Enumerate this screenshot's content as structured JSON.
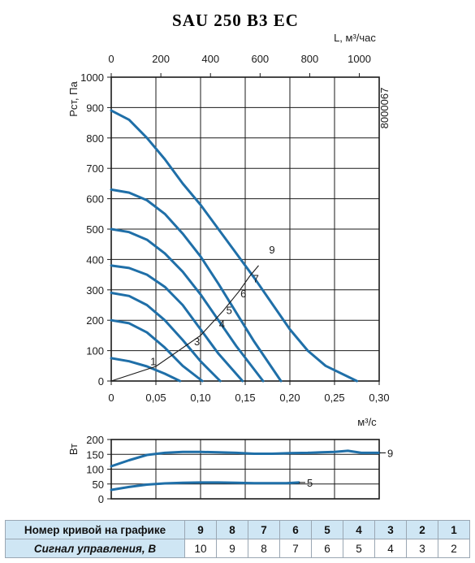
{
  "title": "SAU 250 B3 EC",
  "code": "8000067",
  "chart_data": [
    {
      "type": "line",
      "x_top_label": "L, м³/час",
      "x_top_ticks": [
        "0",
        "200",
        "400",
        "600",
        "800",
        "1000"
      ],
      "x_bottom_label": "м³/с",
      "x_bottom_ticks": [
        "0",
        "0,05",
        "0,10",
        "0,15",
        "0,20",
        "0,25",
        "0,30"
      ],
      "ylabel": "Pст, Па",
      "y_ticks": [
        "0",
        "100",
        "200",
        "300",
        "400",
        "500",
        "600",
        "700",
        "800",
        "900",
        "1000"
      ],
      "xlim": [
        0,
        0.3
      ],
      "ylim": [
        0,
        1000
      ],
      "grid": true,
      "series": [
        {
          "name": "1",
          "points": [
            [
              0,
              75
            ],
            [
              0.02,
              65
            ],
            [
              0.04,
              48
            ],
            [
              0.06,
              24
            ],
            [
              0.077,
              0
            ]
          ]
        },
        {
          "name": "",
          "points": [
            [
              0,
              200
            ],
            [
              0.02,
              190
            ],
            [
              0.04,
              160
            ],
            [
              0.06,
              110
            ],
            [
              0.08,
              50
            ],
            [
              0.102,
              0
            ]
          ]
        },
        {
          "name": "",
          "points": [
            [
              0,
              290
            ],
            [
              0.02,
              280
            ],
            [
              0.04,
              250
            ],
            [
              0.06,
              200
            ],
            [
              0.08,
              135
            ],
            [
              0.1,
              65
            ],
            [
              0.122,
              0
            ]
          ]
        },
        {
          "name": "",
          "points": [
            [
              0,
              380
            ],
            [
              0.02,
              372
            ],
            [
              0.04,
              350
            ],
            [
              0.06,
              310
            ],
            [
              0.08,
              250
            ],
            [
              0.1,
              170
            ],
            [
              0.12,
              90
            ],
            [
              0.147,
              0
            ]
          ]
        },
        {
          "name": "",
          "points": [
            [
              0,
              500
            ],
            [
              0.02,
              490
            ],
            [
              0.04,
              465
            ],
            [
              0.06,
              420
            ],
            [
              0.08,
              360
            ],
            [
              0.1,
              285
            ],
            [
              0.12,
              200
            ],
            [
              0.14,
              115
            ],
            [
              0.17,
              0
            ]
          ]
        },
        {
          "name": "",
          "points": [
            [
              0,
              630
            ],
            [
              0.02,
              620
            ],
            [
              0.04,
              595
            ],
            [
              0.06,
              550
            ],
            [
              0.08,
              485
            ],
            [
              0.1,
              410
            ],
            [
              0.12,
              320
            ],
            [
              0.14,
              225
            ],
            [
              0.16,
              130
            ],
            [
              0.19,
              0
            ]
          ]
        },
        {
          "name": "",
          "points": [
            [
              0,
              890
            ],
            [
              0.02,
              860
            ],
            [
              0.04,
              800
            ],
            [
              0.06,
              730
            ],
            [
              0.08,
              650
            ],
            [
              0.1,
              580
            ],
            [
              0.12,
              500
            ],
            [
              0.14,
              420
            ],
            [
              0.16,
              340
            ],
            [
              0.18,
              255
            ],
            [
              0.2,
              170
            ],
            [
              0.22,
              100
            ],
            [
              0.24,
              50
            ],
            [
              0.275,
              0
            ]
          ]
        }
      ],
      "sum_curve": [
        [
          0,
          0
        ],
        [
          0.05,
          48
        ],
        [
          0.1,
          150
        ],
        [
          0.125,
          230
        ],
        [
          0.143,
          295
        ],
        [
          0.155,
          345
        ],
        [
          0.165,
          380
        ]
      ],
      "curve_labels": [
        {
          "text": "1",
          "x": 0.047,
          "y": 52
        },
        {
          "text": "3",
          "x": 0.096,
          "y": 118
        },
        {
          "text": "4",
          "x": 0.124,
          "y": 175
        },
        {
          "text": "5",
          "x": 0.132,
          "y": 220
        },
        {
          "text": "6",
          "x": 0.148,
          "y": 275
        },
        {
          "text": "7",
          "x": 0.162,
          "y": 325
        },
        {
          "text": "9",
          "x": 0.18,
          "y": 420
        }
      ]
    },
    {
      "type": "line",
      "ylabel": "Вт",
      "y_ticks": [
        "0",
        "50",
        "100",
        "150",
        "200"
      ],
      "ylim": [
        0,
        200
      ],
      "xlim": [
        0,
        0.3
      ],
      "grid": true,
      "series": [
        {
          "name": "9",
          "points": [
            [
              0,
              110
            ],
            [
              0.02,
              130
            ],
            [
              0.04,
              148
            ],
            [
              0.06,
              155
            ],
            [
              0.08,
              158
            ],
            [
              0.1,
              158
            ],
            [
              0.12,
              157
            ],
            [
              0.14,
              155
            ],
            [
              0.16,
              152
            ],
            [
              0.18,
              152
            ],
            [
              0.2,
              154
            ],
            [
              0.22,
              155
            ],
            [
              0.235,
              157
            ],
            [
              0.25,
              158
            ],
            [
              0.265,
              162
            ],
            [
              0.28,
              155
            ],
            [
              0.3,
              155
            ]
          ]
        },
        {
          "name": "5",
          "points": [
            [
              0,
              30
            ],
            [
              0.02,
              40
            ],
            [
              0.04,
              48
            ],
            [
              0.06,
              52
            ],
            [
              0.08,
              54
            ],
            [
              0.1,
              55
            ],
            [
              0.12,
              55
            ],
            [
              0.14,
              54
            ],
            [
              0.16,
              53
            ],
            [
              0.18,
              53
            ],
            [
              0.196,
              53
            ],
            [
              0.21,
              55
            ]
          ]
        }
      ]
    }
  ],
  "table": {
    "row1_header": "Номер кривой на графике",
    "row1_values": [
      "9",
      "8",
      "7",
      "6",
      "5",
      "4",
      "3",
      "2",
      "1"
    ],
    "row2_header": "Сигнал управления, В",
    "row2_values": [
      "10",
      "9",
      "8",
      "7",
      "6",
      "5",
      "4",
      "3",
      "2"
    ]
  },
  "colors": {
    "curve": "#1f6fa8",
    "table_header": "#cfe6f4",
    "grid": "#1a1a1a"
  }
}
